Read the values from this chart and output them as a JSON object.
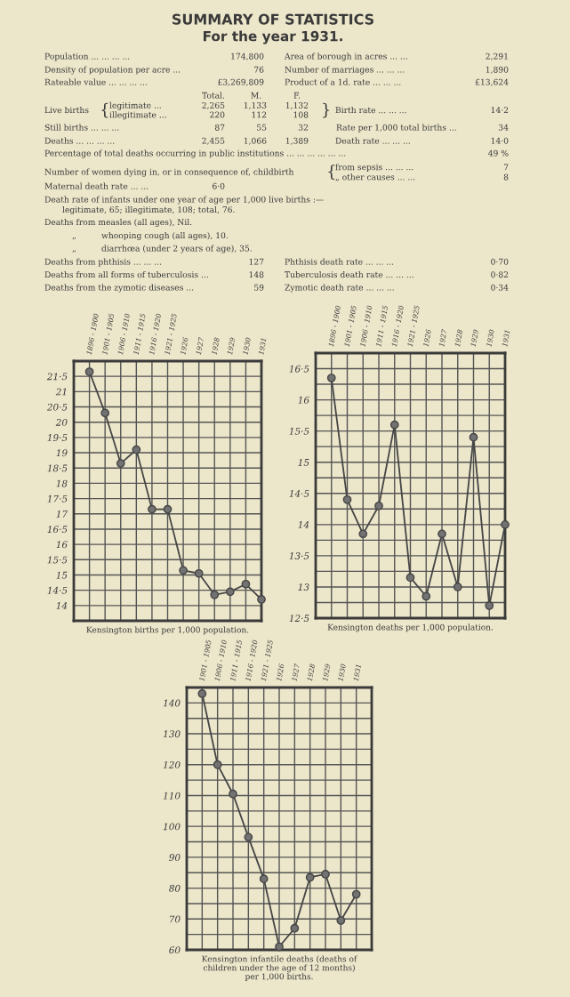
{
  "chart_data": [
    {
      "type": "other",
      "title": "SUMMARY OF STATISTICS",
      "subtitle": "For the year 1931.",
      "annotations": [
        "Population ... ... ... ...",
        "174,800",
        "Area of borough in acres ... ...",
        "2,291",
        "Density of population per acre ...",
        "76",
        "Number of marriages ... ... ...",
        "1,890",
        "Rateable value ... ... ... ...",
        "£3,269,809",
        "Product of a 1d. rate ... ... ...",
        "£13,624",
        "Total.",
        "M.",
        "F.",
        "Live births",
        "{",
        "legitimate ...",
        "2,265",
        "1,133",
        "1,132",
        "illegitimate ...",
        "220",
        "112",
        "108",
        "}",
        "Birth rate ... ... ...",
        "14·2",
        "Still births ... ... ...",
        "87",
        "55",
        "32",
        "Rate per 1,000 total births ...",
        "34",
        "Deaths ... ... ... ...",
        "2,455",
        "1,066",
        "1,389",
        "Death rate ... ... ...",
        "14·0",
        "Percentage of total deaths occurring in public institutions ... ... ... ... ... ...",
        "49 %",
        "Number of women dying in, or in consequence of, childbirth",
        "{",
        "from sepsis ... ... ...",
        "7",
        "„ other causes ... ...",
        "8",
        "Maternal death rate ... ...",
        "6·0",
        "Death rate of infants under one year of age per 1,000 live births :—",
        "legitimate, 65; illegitimate, 108; total, 76.",
        "Deaths from measles (all ages), Nil.",
        "„",
        "whooping cough (all ages), 10.",
        "„",
        "diarrhœa (under 2 years of age), 35.",
        "Deaths from phthisis ... ... ...",
        "127",
        "Phthisis death rate ... ... ...",
        "0·70",
        "Deaths from all forms of tuberculosis ...",
        "148",
        "Tuberculosis death rate ... ... ...",
        "0·82",
        "Deaths from the zymotic diseases ...",
        "59",
        "Zymotic death rate ... ... ...",
        "0·34"
      ]
    },
    {
      "type": "line",
      "title": "Kensington births per 1,000 population.",
      "categories": [
        "1896 - 1900",
        "1901 - 1905",
        "1906 - 1910",
        "1911 - 1915",
        "1916 - 1920",
        "1921 - 1925",
        "1926",
        "1927",
        "1928",
        "1929",
        "1930",
        "1931"
      ],
      "values": [
        21.65,
        20.3,
        18.65,
        19.1,
        17.15,
        17.15,
        15.15,
        15.05,
        14.35,
        14.45,
        14.7,
        14.2
      ],
      "color": "#454545",
      "marker": "circle",
      "grid": true,
      "ylim": [
        13.5,
        22
      ],
      "yticks": [
        14,
        {
          "value": 14.5,
          "label": "14·5"
        },
        15,
        {
          "value": 15.5,
          "label": "15·5"
        },
        16,
        {
          "value": 16.5,
          "label": "16·5"
        },
        17,
        {
          "value": 17.5,
          "label": "17·5"
        },
        18,
        {
          "value": 18.5,
          "label": "18·5"
        },
        19,
        {
          "value": 19.5,
          "label": "19·5"
        },
        20,
        {
          "value": 20.5,
          "label": "20·5"
        },
        21,
        {
          "value": 21.5,
          "label": "21·5"
        }
      ]
    },
    {
      "type": "line",
      "title": "Kensington deaths per 1,000 population.",
      "categories": [
        "1896 - 1900",
        "1901 - 1905",
        "1906 - 1910",
        "1911 - 1915",
        "1916 - 1920",
        "1921 - 1925",
        "1926",
        "1927",
        "1928",
        "1929",
        "1930",
        "1931"
      ],
      "values": [
        16.35,
        14.4,
        13.85,
        14.3,
        15.6,
        13.15,
        12.85,
        13.85,
        13.0,
        15.4,
        12.7,
        14.0
      ],
      "color": "#454545",
      "marker": "circle",
      "grid": true,
      "ylim": [
        12.5,
        16.75
      ],
      "yticks": [
        {
          "value": 12.5,
          "label": "12·5"
        },
        {
          "value": 12.75,
          "label": null
        },
        13,
        {
          "value": 13.25,
          "label": null
        },
        {
          "value": 13.5,
          "label": "13·5"
        },
        {
          "value": 13.75,
          "label": null
        },
        14,
        {
          "value": 14.25,
          "label": null
        },
        {
          "value": 14.5,
          "label": "14·5"
        },
        {
          "value": 14.75,
          "label": null
        },
        15,
        {
          "value": 15.25,
          "label": null
        },
        {
          "value": 15.5,
          "label": "15·5"
        },
        {
          "value": 15.75,
          "label": null
        },
        16,
        {
          "value": 16.25,
          "label": null
        },
        {
          "value": 16.5,
          "label": "16·5"
        }
      ]
    },
    {
      "type": "line",
      "title": "Kensington infantile deaths (deaths of\nchildren under the age of 12 months)\nper 1,000 births.",
      "categories": [
        "1901 - 1905",
        "1906 - 1910",
        "1911 - 1915",
        "1916 - 1920",
        "1921 - 1925",
        "1926",
        "1927",
        "1928",
        "1929",
        "1930",
        "1931",
        null
      ],
      "values": [
        143,
        120,
        110.5,
        96.5,
        83,
        61,
        67,
        83.5,
        84.5,
        69.5,
        78,
        null
      ],
      "color": "#454545",
      "marker": "circle",
      "grid": true,
      "ylim": [
        60,
        145
      ],
      "yticks": [
        60,
        {
          "value": 65,
          "label": null
        },
        70,
        {
          "value": 75,
          "label": null
        },
        80,
        {
          "value": 85,
          "label": null
        },
        90,
        {
          "value": 95,
          "label": null
        },
        100,
        {
          "value": 105,
          "label": null
        },
        110,
        {
          "value": 115,
          "label": null
        },
        120,
        {
          "value": 125,
          "label": null
        },
        130,
        {
          "value": 135,
          "label": null
        },
        140
      ]
    }
  ]
}
